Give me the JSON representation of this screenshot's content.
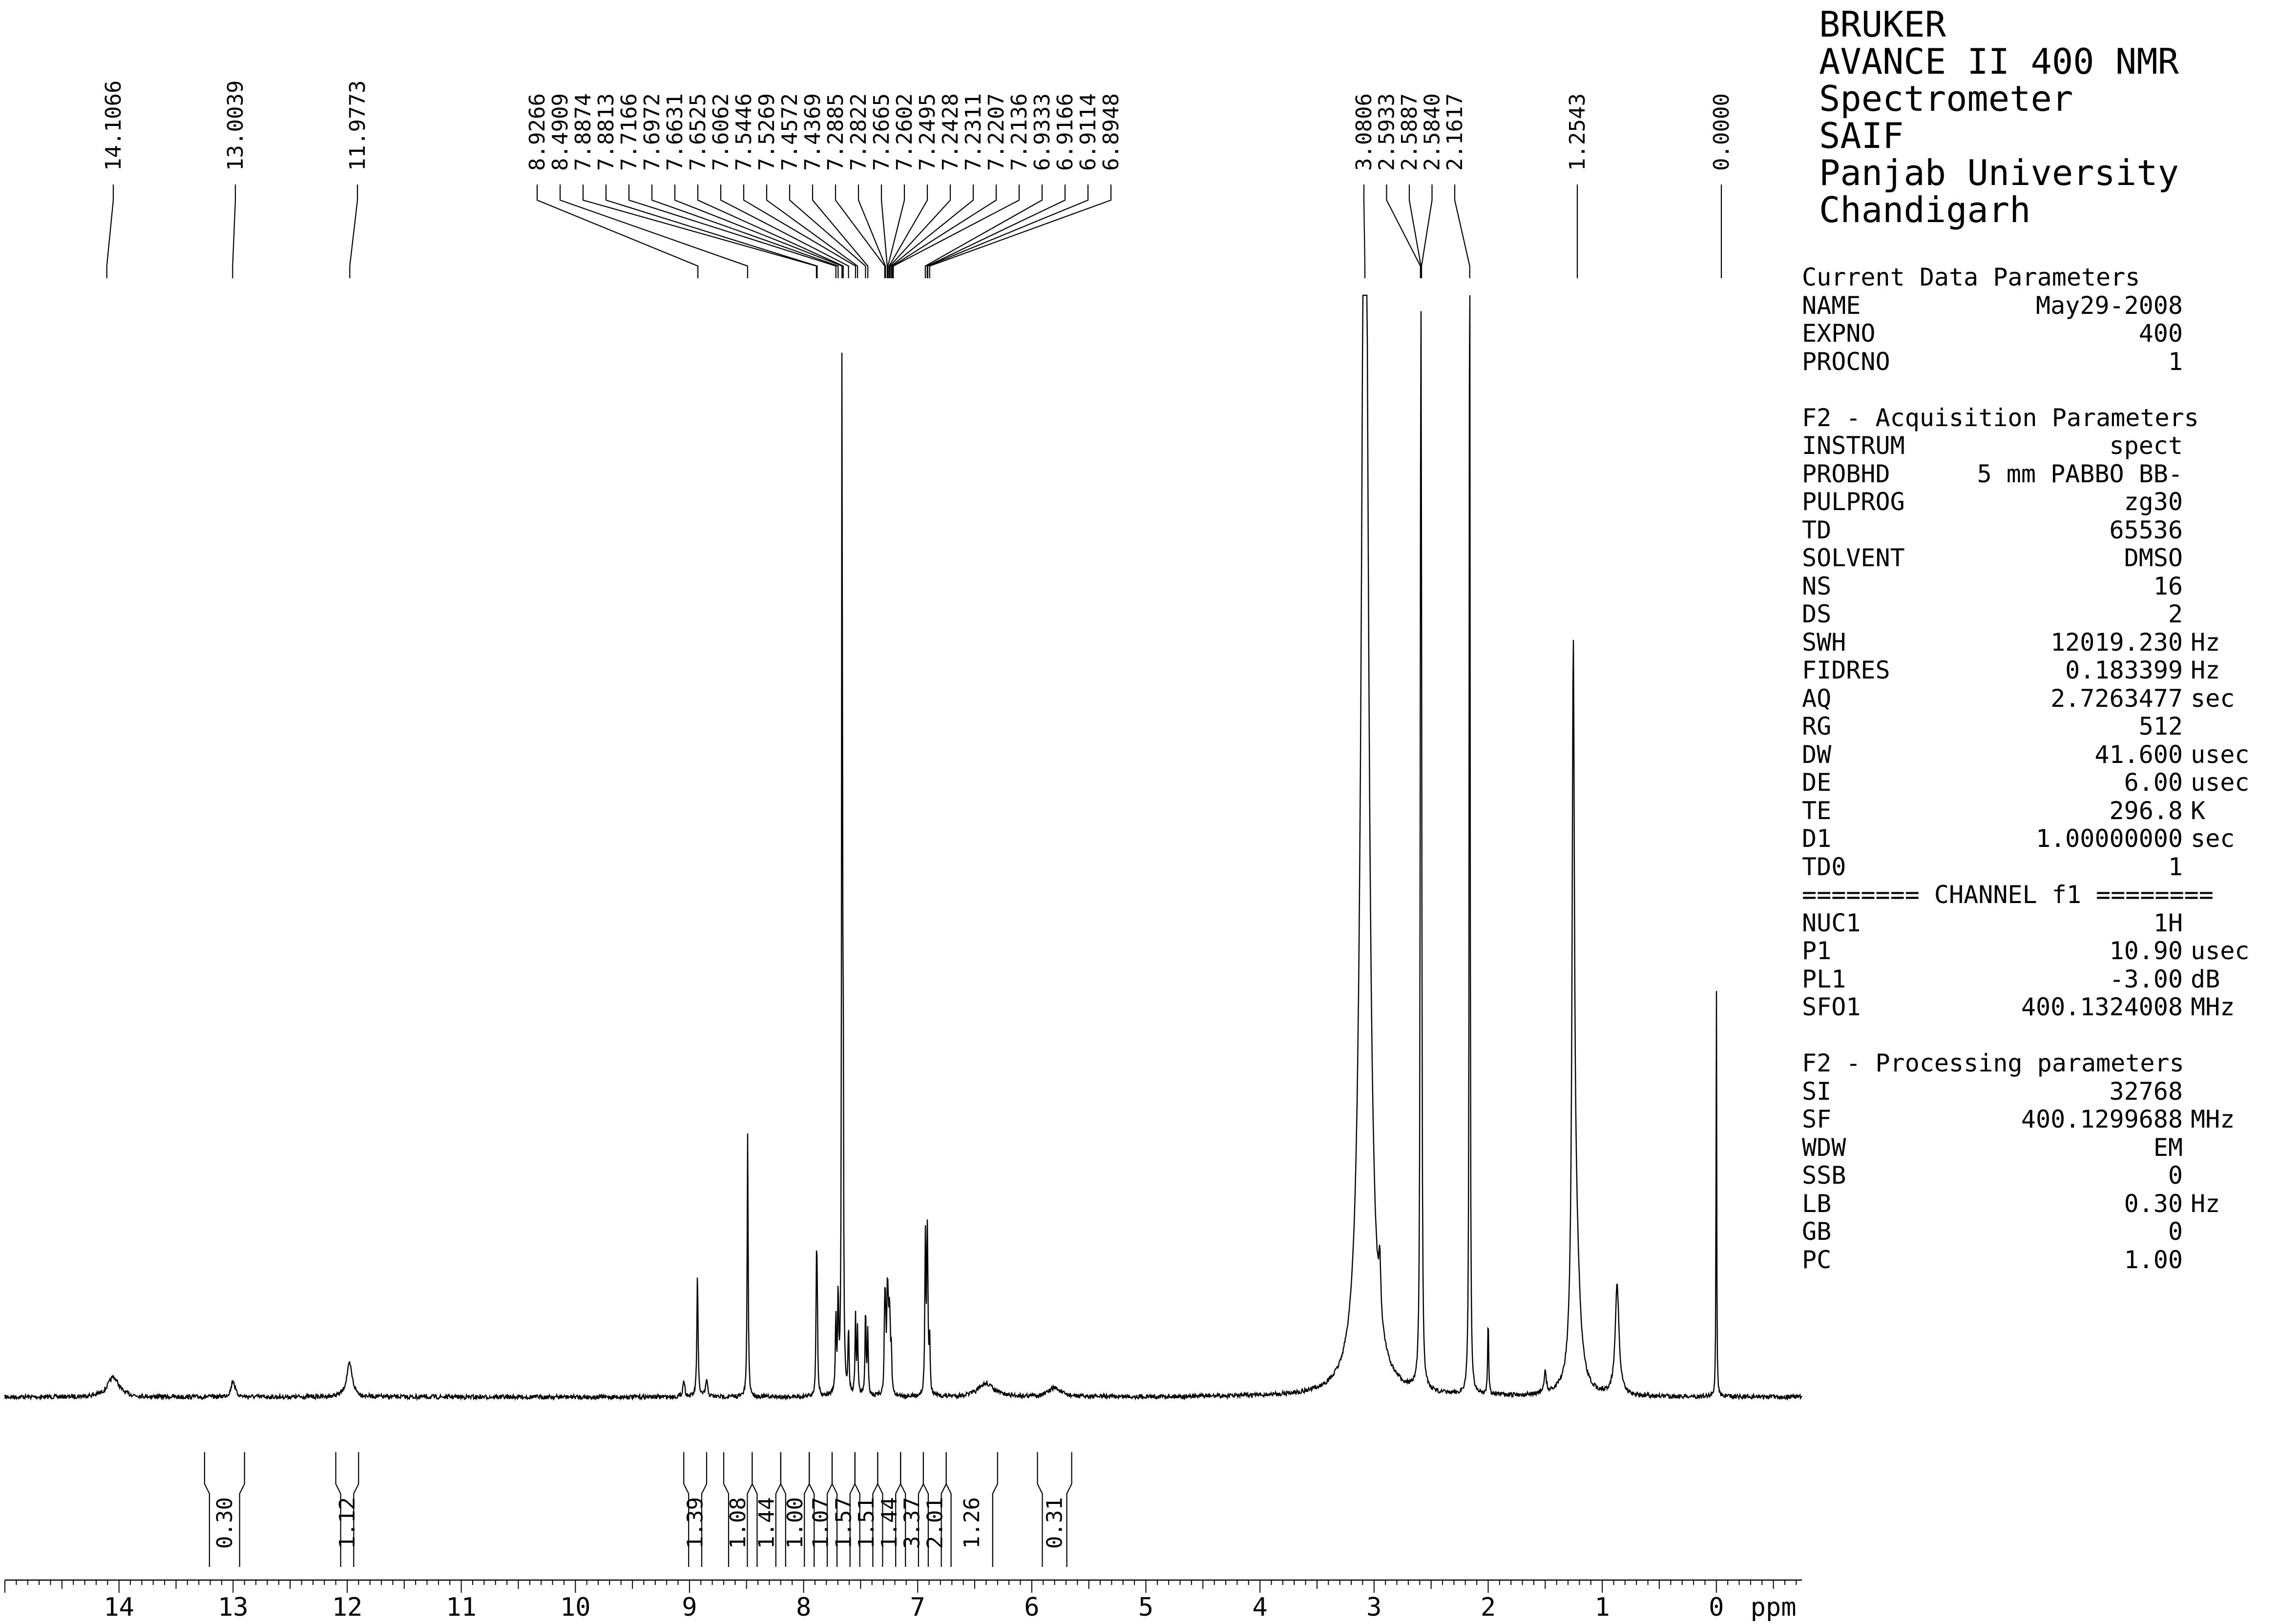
{
  "instrument_header": [
    "BRUKER",
    "AVANCE II 400 NMR",
    "Spectrometer",
    "SAIF",
    "Panjab University",
    "Chandigarh"
  ],
  "parameters": {
    "current": {
      "title": "Current Data Parameters",
      "rows": [
        {
          "name": "NAME",
          "value": "May29-2008",
          "unit": ""
        },
        {
          "name": "EXPNO",
          "value": "400",
          "unit": ""
        },
        {
          "name": "PROCNO",
          "value": "1",
          "unit": ""
        }
      ]
    },
    "acquisition": {
      "title": "F2 - Acquisition Parameters",
      "rows": [
        {
          "name": "INSTRUM",
          "value": "spect",
          "unit": ""
        },
        {
          "name": "PROBHD",
          "value": "5 mm PABBO BB-",
          "unit": ""
        },
        {
          "name": "PULPROG",
          "value": "zg30",
          "unit": ""
        },
        {
          "name": "TD",
          "value": "65536",
          "unit": ""
        },
        {
          "name": "SOLVENT",
          "value": "DMSO",
          "unit": ""
        },
        {
          "name": "NS",
          "value": "16",
          "unit": ""
        },
        {
          "name": "DS",
          "value": "2",
          "unit": ""
        },
        {
          "name": "SWH",
          "value": "12019.230",
          "unit": "Hz"
        },
        {
          "name": "FIDRES",
          "value": "0.183399",
          "unit": "Hz"
        },
        {
          "name": "AQ",
          "value": "2.7263477",
          "unit": "sec"
        },
        {
          "name": "RG",
          "value": "512",
          "unit": ""
        },
        {
          "name": "DW",
          "value": "41.600",
          "unit": "usec"
        },
        {
          "name": "DE",
          "value": "6.00",
          "unit": "usec"
        },
        {
          "name": "TE",
          "value": "296.8",
          "unit": "K"
        },
        {
          "name": "D1",
          "value": "1.00000000",
          "unit": "sec"
        },
        {
          "name": "TD0",
          "value": "1",
          "unit": ""
        }
      ]
    },
    "channel": {
      "title": "======== CHANNEL f1 ========",
      "rows": [
        {
          "name": "NUC1",
          "value": "1H",
          "unit": ""
        },
        {
          "name": "P1",
          "value": "10.90",
          "unit": "usec"
        },
        {
          "name": "PL1",
          "value": "-3.00",
          "unit": "dB"
        },
        {
          "name": "SFO1",
          "value": "400.1324008",
          "unit": "MHz"
        }
      ]
    },
    "processing": {
      "title": "F2 - Processing parameters",
      "rows": [
        {
          "name": "SI",
          "value": "32768",
          "unit": ""
        },
        {
          "name": "SF",
          "value": "400.1299688",
          "unit": "MHz"
        },
        {
          "name": "WDW",
          "value": "EM",
          "unit": ""
        },
        {
          "name": "SSB",
          "value": "0",
          "unit": ""
        },
        {
          "name": "LB",
          "value": "0.30",
          "unit": "Hz"
        },
        {
          "name": "GB",
          "value": "0",
          "unit": ""
        },
        {
          "name": "PC",
          "value": "1.00",
          "unit": ""
        }
      ]
    }
  },
  "chart_data": {
    "type": "line",
    "title": "",
    "xlabel": "ppm",
    "ylabel": "",
    "xlim": [
      15.0,
      -0.75
    ],
    "x_reversed": true,
    "x_ticks": [
      14,
      13,
      12,
      11,
      10,
      9,
      8,
      7,
      6,
      5,
      4,
      3,
      2,
      1,
      0
    ],
    "x_unit_label": "ppm",
    "grid": false,
    "legend": "none",
    "series": [
      {
        "peaks": [
          {
            "ppm": 14.05,
            "height": 0.018,
            "width": 0.06
          },
          {
            "ppm": 13.0,
            "height": 0.015,
            "width": 0.02
          },
          {
            "ppm": 11.98,
            "height": 0.03,
            "width": 0.03
          },
          {
            "ppm": 9.05,
            "height": 0.015,
            "width": 0.01
          },
          {
            "ppm": 8.93,
            "height": 0.11,
            "width": 0.006
          },
          {
            "ppm": 8.85,
            "height": 0.015,
            "width": 0.01
          },
          {
            "ppm": 8.49,
            "height": 0.24,
            "width": 0.005
          },
          {
            "ppm": 7.887,
            "height": 0.1,
            "width": 0.005
          },
          {
            "ppm": 7.881,
            "height": 0.08,
            "width": 0.005
          },
          {
            "ppm": 7.717,
            "height": 0.07,
            "width": 0.005
          },
          {
            "ppm": 7.697,
            "height": 0.09,
            "width": 0.005
          },
          {
            "ppm": 7.663,
            "height": 1.0,
            "width": 0.004
          },
          {
            "ppm": 7.653,
            "height": 0.28,
            "width": 0.004
          },
          {
            "ppm": 7.606,
            "height": 0.06,
            "width": 0.005
          },
          {
            "ppm": 7.545,
            "height": 0.07,
            "width": 0.005
          },
          {
            "ppm": 7.527,
            "height": 0.06,
            "width": 0.005
          },
          {
            "ppm": 7.457,
            "height": 0.08,
            "width": 0.005
          },
          {
            "ppm": 7.437,
            "height": 0.06,
            "width": 0.005
          },
          {
            "ppm": 7.289,
            "height": 0.07,
            "width": 0.005
          },
          {
            "ppm": 7.282,
            "height": 0.06,
            "width": 0.005
          },
          {
            "ppm": 7.267,
            "height": 0.07,
            "width": 0.005
          },
          {
            "ppm": 7.26,
            "height": 0.06,
            "width": 0.005
          },
          {
            "ppm": 7.25,
            "height": 0.05,
            "width": 0.005
          },
          {
            "ppm": 7.243,
            "height": 0.05,
            "width": 0.005
          },
          {
            "ppm": 7.231,
            "height": 0.04,
            "width": 0.005
          },
          {
            "ppm": 6.933,
            "height": 0.14,
            "width": 0.005
          },
          {
            "ppm": 6.917,
            "height": 0.13,
            "width": 0.005
          },
          {
            "ppm": 6.911,
            "height": 0.05,
            "width": 0.005
          },
          {
            "ppm": 6.895,
            "height": 0.05,
            "width": 0.005
          },
          {
            "ppm": 6.4,
            "height": 0.012,
            "width": 0.08
          },
          {
            "ppm": 5.8,
            "height": 0.008,
            "width": 0.06
          },
          {
            "ppm": 3.08,
            "height": 1.3,
            "width": 0.035
          },
          {
            "ppm": 2.95,
            "height": 0.05,
            "width": 0.01
          },
          {
            "ppm": 2.593,
            "height": 0.35,
            "width": 0.005
          },
          {
            "ppm": 2.589,
            "height": 0.6,
            "width": 0.005
          },
          {
            "ppm": 2.584,
            "height": 0.35,
            "width": 0.005
          },
          {
            "ppm": 2.162,
            "height": 1.3,
            "width": 0.004
          },
          {
            "ppm": 2.0,
            "height": 0.07,
            "width": 0.005
          },
          {
            "ppm": 1.5,
            "height": 0.02,
            "width": 0.01
          },
          {
            "ppm": 1.254,
            "height": 0.6,
            "width": 0.012
          },
          {
            "ppm": 1.23,
            "height": 0.12,
            "width": 0.04
          },
          {
            "ppm": 0.87,
            "height": 0.1,
            "width": 0.02
          },
          {
            "ppm": 0.0,
            "height": 0.41,
            "width": 0.003
          }
        ]
      }
    ],
    "peak_labels": [
      "14.1066",
      "13.0039",
      "11.9773",
      "8.9266",
      "8.4909",
      "7.8874",
      "7.8813",
      "7.7166",
      "7.6972",
      "7.6631",
      "7.6525",
      "7.6062",
      "7.5446",
      "7.5269",
      "7.4572",
      "7.4369",
      "7.2885",
      "7.2822",
      "7.2665",
      "7.2602",
      "7.2495",
      "7.2428",
      "7.2311",
      "7.2207",
      "7.2136",
      "6.9333",
      "6.9166",
      "6.9114",
      "6.8948",
      "3.0806",
      "2.5933",
      "2.5887",
      "2.5840",
      "2.1617",
      "1.2543",
      "0.0000"
    ],
    "integrals": [
      {
        "from": 13.25,
        "to": 12.9,
        "value": "0.30"
      },
      {
        "from": 12.1,
        "to": 11.9,
        "value": "1.12"
      },
      {
        "from": 9.05,
        "to": 8.85,
        "value": "1.39"
      },
      {
        "from": 8.7,
        "to": 8.45,
        "value": "1.08"
      },
      {
        "from": 8.45,
        "to": 8.2,
        "value": "1.44"
      },
      {
        "from": 8.2,
        "to": 7.95,
        "value": "1.00"
      },
      {
        "from": 7.95,
        "to": 7.75,
        "value": "1.07"
      },
      {
        "from": 7.75,
        "to": 7.55,
        "value": "1.57"
      },
      {
        "from": 7.55,
        "to": 7.35,
        "value": "1.51"
      },
      {
        "from": 7.35,
        "to": 7.15,
        "value": "1.44"
      },
      {
        "from": 7.15,
        "to": 6.95,
        "value": "3.37"
      },
      {
        "from": 6.95,
        "to": 6.75,
        "value": "2.01"
      },
      {
        "from": 6.75,
        "to": 6.3,
        "value": "1.26"
      },
      {
        "from": 5.95,
        "to": 5.65,
        "value": "0.31"
      }
    ]
  }
}
